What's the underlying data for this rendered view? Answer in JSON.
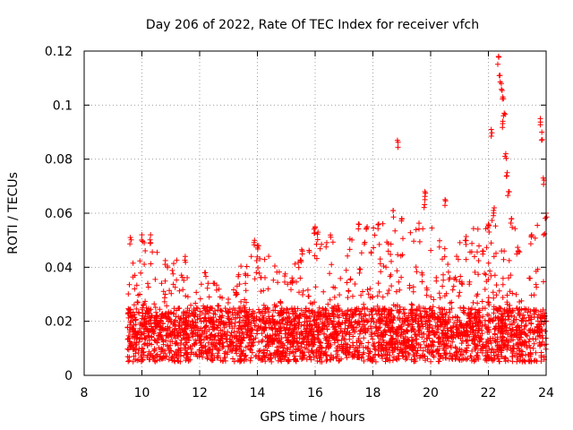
{
  "chart_data": {
    "type": "scatter",
    "title": "Day 206 of 2022, Rate Of TEC Index for receiver vfch",
    "xlabel": "GPS time / hours",
    "ylabel": "ROTI / TECUs",
    "xlim": [
      8,
      24
    ],
    "ylim": [
      0,
      0.12
    ],
    "x_ticks": [
      8,
      10,
      12,
      14,
      16,
      18,
      20,
      22,
      24
    ],
    "y_ticks": [
      0,
      0.02,
      0.04,
      0.06,
      0.08,
      0.1,
      0.12
    ],
    "x_tick_labels": [
      "8",
      "10",
      "12",
      "14",
      "16",
      "18",
      "20",
      "22",
      "24"
    ],
    "y_tick_labels": [
      "0",
      "0.02",
      "0.04",
      "0.06",
      "0.08",
      "0.1",
      "0.12"
    ],
    "grid": true,
    "marker": "plus",
    "series": [
      {
        "name": "ROTI",
        "color": "#ff0000",
        "x_range": [
          9.5,
          24.0
        ],
        "baseline_typical": [
          0.005,
          0.025
        ],
        "notable_points": [
          {
            "x": 18.85,
            "y": 0.087
          },
          {
            "x": 19.8,
            "y": 0.068
          },
          {
            "x": 19.8,
            "y": 0.065
          },
          {
            "x": 20.5,
            "y": 0.065
          },
          {
            "x": 22.1,
            "y": 0.091
          },
          {
            "x": 22.35,
            "y": 0.118
          },
          {
            "x": 22.4,
            "y": 0.111
          },
          {
            "x": 22.45,
            "y": 0.108
          },
          {
            "x": 22.5,
            "y": 0.103
          },
          {
            "x": 22.55,
            "y": 0.097
          },
          {
            "x": 22.5,
            "y": 0.094
          },
          {
            "x": 22.6,
            "y": 0.082
          },
          {
            "x": 22.65,
            "y": 0.075
          },
          {
            "x": 22.7,
            "y": 0.068
          },
          {
            "x": 23.8,
            "y": 0.095
          },
          {
            "x": 23.85,
            "y": 0.09
          },
          {
            "x": 23.9,
            "y": 0.073
          },
          {
            "x": 24.0,
            "y": 0.06
          },
          {
            "x": 9.6,
            "y": 0.051
          },
          {
            "x": 10.0,
            "y": 0.052
          },
          {
            "x": 10.3,
            "y": 0.052
          },
          {
            "x": 11.5,
            "y": 0.044
          },
          {
            "x": 13.9,
            "y": 0.05
          },
          {
            "x": 14.0,
            "y": 0.048
          },
          {
            "x": 16.0,
            "y": 0.055
          },
          {
            "x": 16.1,
            "y": 0.053
          },
          {
            "x": 17.5,
            "y": 0.056
          },
          {
            "x": 17.8,
            "y": 0.055
          },
          {
            "x": 18.2,
            "y": 0.056
          },
          {
            "x": 18.7,
            "y": 0.061
          },
          {
            "x": 19.0,
            "y": 0.058
          },
          {
            "x": 21.2,
            "y": 0.05
          },
          {
            "x": 21.8,
            "y": 0.046
          },
          {
            "x": 22.0,
            "y": 0.056
          },
          {
            "x": 22.2,
            "y": 0.062
          },
          {
            "x": 22.8,
            "y": 0.058
          },
          {
            "x": 23.5,
            "y": 0.052
          },
          {
            "x": 13.3,
            "y": 0.033
          },
          {
            "x": 12.2,
            "y": 0.038
          },
          {
            "x": 15.2,
            "y": 0.036
          }
        ],
        "activity_profile": [
          {
            "hour": 9.5,
            "typical": 0.012,
            "spread": 0.012,
            "max": 0.035
          },
          {
            "hour": 10.0,
            "typical": 0.016,
            "spread": 0.016,
            "max": 0.052
          },
          {
            "hour": 11.0,
            "typical": 0.014,
            "spread": 0.012,
            "max": 0.045
          },
          {
            "hour": 12.0,
            "typical": 0.012,
            "spread": 0.009,
            "max": 0.038
          },
          {
            "hour": 13.0,
            "typical": 0.012,
            "spread": 0.009,
            "max": 0.034
          },
          {
            "hour": 14.0,
            "typical": 0.014,
            "spread": 0.014,
            "max": 0.05
          },
          {
            "hour": 15.0,
            "typical": 0.013,
            "spread": 0.01,
            "max": 0.038
          },
          {
            "hour": 16.0,
            "typical": 0.015,
            "spread": 0.013,
            "max": 0.055
          },
          {
            "hour": 17.0,
            "typical": 0.015,
            "spread": 0.013,
            "max": 0.05
          },
          {
            "hour": 18.0,
            "typical": 0.016,
            "spread": 0.014,
            "max": 0.056
          },
          {
            "hour": 19.0,
            "typical": 0.016,
            "spread": 0.013,
            "max": 0.06
          },
          {
            "hour": 20.0,
            "typical": 0.015,
            "spread": 0.012,
            "max": 0.055
          },
          {
            "hour": 21.0,
            "typical": 0.014,
            "spread": 0.011,
            "max": 0.05
          },
          {
            "hour": 22.0,
            "typical": 0.016,
            "spread": 0.015,
            "max": 0.06
          },
          {
            "hour": 23.0,
            "typical": 0.015,
            "spread": 0.013,
            "max": 0.055
          },
          {
            "hour": 24.0,
            "typical": 0.016,
            "spread": 0.014,
            "max": 0.06
          }
        ]
      }
    ]
  }
}
